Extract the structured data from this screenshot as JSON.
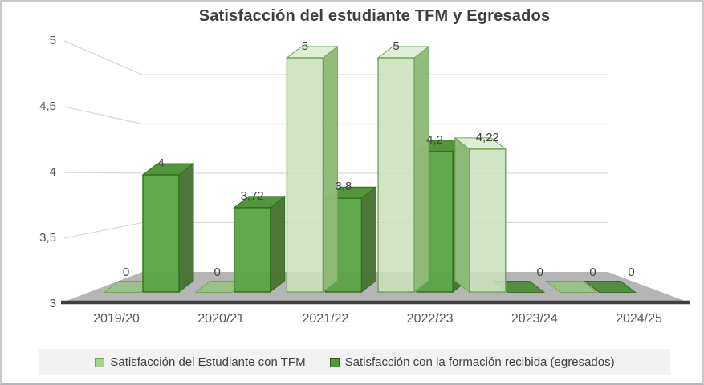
{
  "window": {
    "background": "#ffffff",
    "border_color": "#c7cbcf"
  },
  "chart_data": {
    "type": "bar",
    "variant": "3d-clustered-column",
    "title": "Satisfacción del estudiante TFM y Egresados",
    "categories": [
      "2019/20",
      "2020/21",
      "2021/22",
      "2022/23",
      "2023/24",
      "2024/25"
    ],
    "series": [
      {
        "name": "Satisfacción del Estudiante con TFM",
        "values": [
          0,
          0,
          5,
          5,
          4.22,
          0
        ],
        "labels": [
          "0",
          "0",
          "5",
          "5",
          "4,22",
          "0"
        ],
        "colors": {
          "front": "#c8e1bc",
          "front_opacity": 0.88,
          "top": "#ddeed4",
          "side": "#8fbb78",
          "border": "#70a356",
          "tile": "#9dc185",
          "tile_border": "#74a65a",
          "legend": "#a9d18e",
          "legend_border": "#70ad47"
        }
      },
      {
        "name": "Satisfacción con la formación recibida (egresados)",
        "values": [
          4,
          3.72,
          3.8,
          4.2,
          0,
          0
        ],
        "labels": [
          "4",
          "3,72",
          "3,8",
          "4,2",
          "0",
          "0"
        ],
        "colors": {
          "front": "#5ba447",
          "front_opacity": 0.96,
          "top": "#4e9136",
          "side": "#477434",
          "border": "#2f7217",
          "tile": "#4f8c3a",
          "tile_border": "#346f1e",
          "legend": "#4e9a35",
          "legend_border": "#2d5f16"
        }
      }
    ],
    "y_axis": {
      "min": 3,
      "max": 5,
      "ticks": [
        {
          "label": "5",
          "value": 5
        },
        {
          "label": "4,5",
          "value": 4.5
        },
        {
          "label": "4",
          "value": 4
        },
        {
          "label": "3,5",
          "value": 3.5
        },
        {
          "label": "3",
          "value": 3
        }
      ]
    },
    "grid": {
      "color": "#d9d9d9",
      "on": true
    },
    "floor": {
      "color": "#b5b5b5",
      "edge_color": "#3f3f3f"
    },
    "legend_position": "bottom",
    "legend_background": "#f2f2f2"
  }
}
